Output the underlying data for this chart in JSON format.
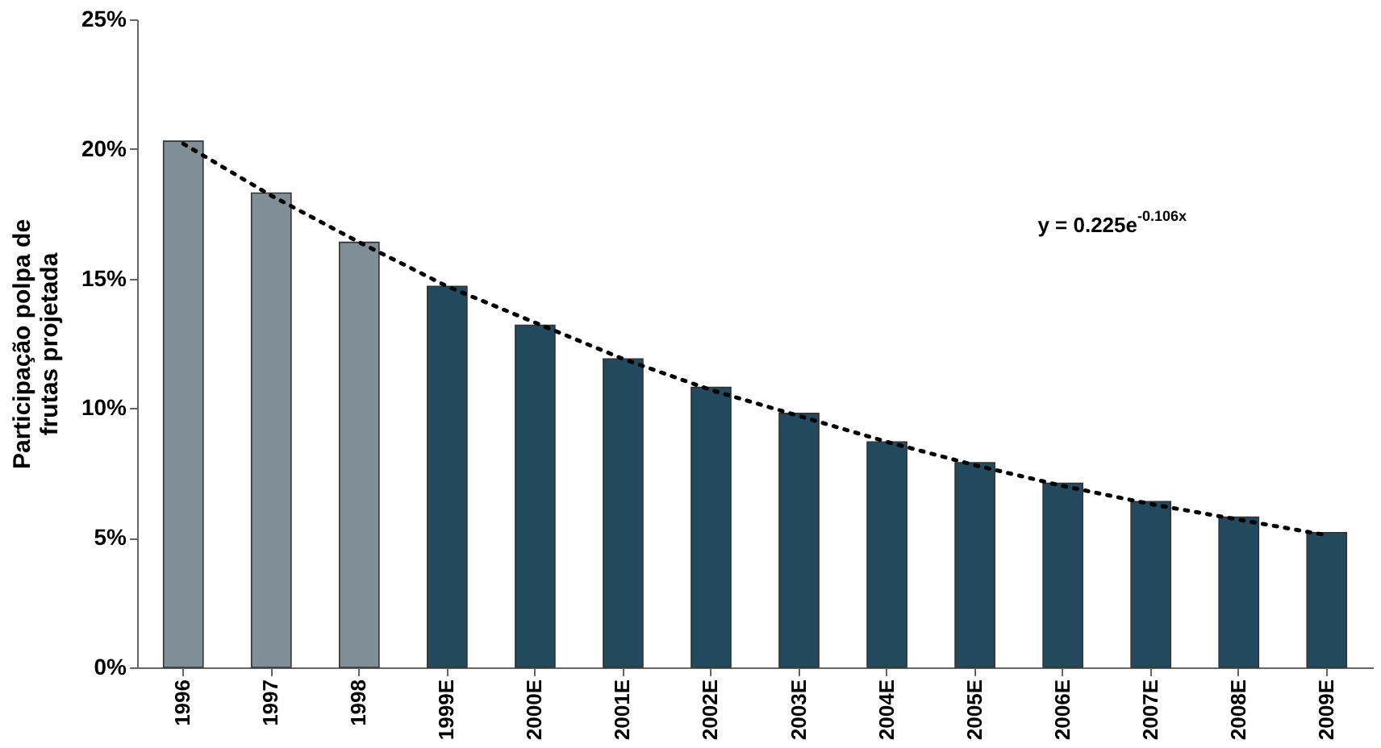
{
  "chart_data": {
    "type": "bar",
    "ylabel": "Participação polpa de\nfrutas projetada",
    "categories": [
      "1996",
      "1997",
      "1998",
      "1999E",
      "2000E",
      "2001E",
      "2002E",
      "2003E",
      "2004E",
      "2005E",
      "2006E",
      "2007E",
      "2008E",
      "2009E"
    ],
    "series": [
      {
        "colors": [
          "#7f8f95",
          "#7f8f95",
          "#7f8f95",
          "#23495f",
          "#23495f",
          "#23495f",
          "#23495f",
          "#23495f",
          "#23495f",
          "#23495f",
          "#23495f",
          "#23495f",
          "#23495f",
          "#23495f"
        ],
        "values": [
          20.3,
          18.3,
          16.4,
          14.7,
          13.2,
          11.9,
          10.8,
          9.8,
          8.7,
          7.9,
          7.1,
          6.4,
          5.8,
          5.2
        ]
      },
      {
        "type": "line",
        "color": "#000000",
        "line_style": "dotted",
        "values": [
          20.2,
          18.2,
          16.4,
          14.7,
          13.3,
          11.9,
          10.7,
          9.7,
          8.7,
          7.8,
          7.0,
          6.3,
          5.7,
          5.1
        ]
      }
    ],
    "ylim": [
      0,
      25
    ],
    "yticks": [
      {
        "value": 0,
        "label": "0%"
      },
      {
        "value": 5,
        "label": "5%"
      },
      {
        "value": 10,
        "label": "10%"
      },
      {
        "value": 15,
        "label": "15%"
      },
      {
        "value": 20,
        "label": "20%"
      },
      {
        "value": 25,
        "label": "25%"
      }
    ],
    "annotations": [
      "y = 0.225e$^{-0.106x}$"
    ],
    "grid": false
  }
}
